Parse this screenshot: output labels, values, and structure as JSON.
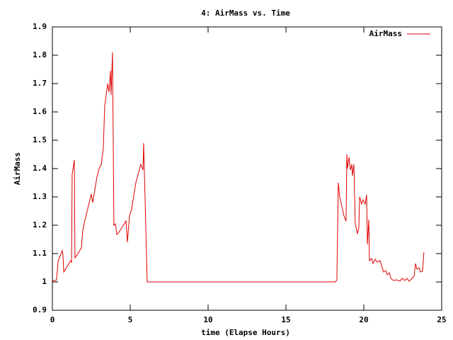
{
  "chart_data": {
    "type": "line",
    "title": "4: AirMass vs. Time",
    "x_label": "time (Elapse Hours)",
    "y_label": "AirMass",
    "xlim": [
      0,
      25
    ],
    "xticks": [
      0,
      5,
      10,
      15,
      20,
      25
    ],
    "ylim": [
      0.9,
      1.9
    ],
    "yticks": [
      0.9,
      1,
      1.1,
      1.2,
      1.3,
      1.4,
      1.5,
      1.6,
      1.7,
      1.8,
      1.9
    ],
    "legend": "top-right",
    "series": [
      {
        "name": "AirMass",
        "color": "#e00000",
        "x": [
          0,
          0.09,
          0.23,
          0.27,
          0.36,
          0.41,
          0.64,
          0.68,
          0.73,
          1.18,
          1.23,
          1.27,
          1.41,
          1.45,
          1.64,
          1.86,
          1.95,
          2.09,
          2.41,
          2.5,
          2.59,
          2.68,
          2.86,
          3.0,
          3.14,
          3.27,
          3.36,
          3.55,
          3.64,
          3.73,
          3.77,
          3.86,
          3.91,
          3.95,
          4.05,
          4.14,
          4.27,
          4.73,
          4.82,
          4.95,
          5.09,
          5.36,
          5.68,
          5.82,
          5.86,
          6.09,
          18.18,
          18.27,
          18.36,
          18.45,
          18.73,
          18.86,
          18.91,
          18.95,
          19.05,
          19.14,
          19.23,
          19.27,
          19.36,
          19.45,
          19.59,
          19.68,
          19.73,
          19.86,
          19.95,
          20.09,
          20.18,
          20.23,
          20.32,
          20.36,
          20.5,
          20.59,
          20.73,
          20.86,
          21.05,
          21.18,
          21.27,
          21.41,
          21.5,
          21.64,
          21.73,
          21.91,
          22.09,
          22.32,
          22.45,
          22.64,
          22.77,
          22.91,
          23.09,
          23.23,
          23.32,
          23.41,
          23.55,
          23.64,
          23.77,
          23.86
        ],
        "values": [
          1.0,
          1.005,
          1.005,
          1.01,
          1.07,
          1.08,
          1.11,
          1.095,
          1.035,
          1.075,
          1.07,
          1.38,
          1.43,
          1.085,
          1.1,
          1.12,
          1.18,
          1.2175,
          1.29,
          1.31,
          1.28,
          1.31,
          1.37,
          1.4,
          1.415,
          1.47,
          1.62,
          1.7,
          1.67,
          1.745,
          1.66,
          1.81,
          1.4825,
          1.2,
          1.205,
          1.1675,
          1.175,
          1.215,
          1.14,
          1.2325,
          1.2575,
          1.35,
          1.415,
          1.395,
          1.49,
          1.0,
          1.0,
          1.0075,
          1.35,
          1.3,
          1.2325,
          1.215,
          1.45,
          1.4,
          1.44,
          1.395,
          1.415,
          1.375,
          1.415,
          1.2075,
          1.17,
          1.19,
          1.3,
          1.275,
          1.29,
          1.275,
          1.3075,
          1.1325,
          1.22,
          1.075,
          1.0825,
          1.065,
          1.08,
          1.07,
          1.075,
          1.05,
          1.035,
          1.04,
          1.025,
          1.0325,
          1.0125,
          1.005,
          1.0075,
          1.0025,
          1.0125,
          1.005,
          1.0125,
          1.0025,
          1.0125,
          1.02,
          1.065,
          1.045,
          1.05,
          1.035,
          1.0375,
          1.105
        ]
      }
    ]
  }
}
